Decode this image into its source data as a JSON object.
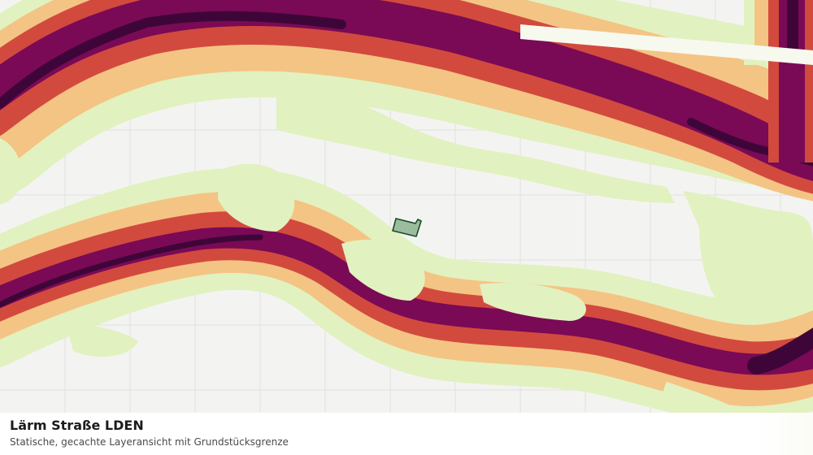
{
  "map": {
    "legend_title": "Lärm Straße LDEN",
    "legend_subtitle": "Statische, gecachte Layeransicht mit Grundstücksgrenze",
    "colors": {
      "background": "#f3f4f2",
      "grid": "#e0e2dd",
      "band_lightest": "#e2f1c0",
      "band_light": "#f4c484",
      "band_mid": "#d24a3e",
      "band_dark": "#7a0a55",
      "band_darkest": "#3e0638",
      "parcel_fill": "#9bbc9d",
      "parcel_stroke": "#1f4a2a"
    },
    "icons": {
      "parcel": "parcel-outline-icon"
    }
  }
}
